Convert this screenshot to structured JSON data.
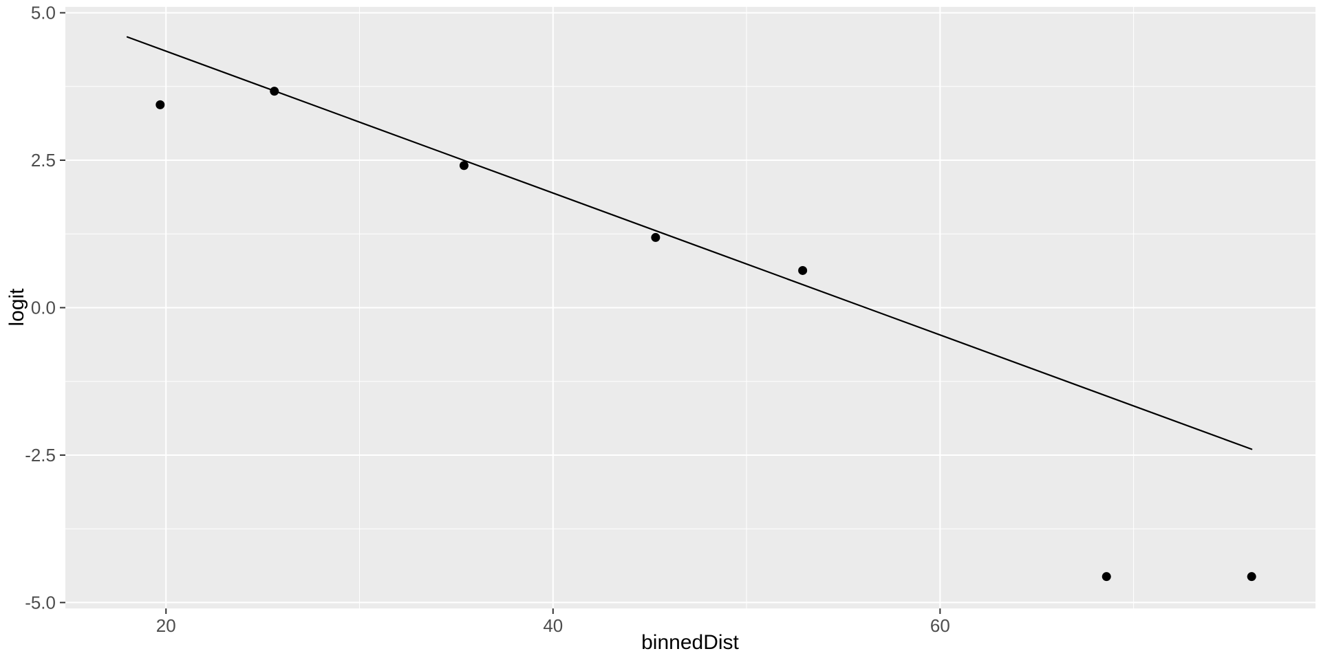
{
  "chart_data": {
    "type": "scatter",
    "title": "",
    "xlabel": "binnedDist",
    "ylabel": "logit",
    "xlim": [
      14.8,
      79.4
    ],
    "ylim": [
      -5.1,
      5.1
    ],
    "x_ticks": [
      20,
      40,
      60
    ],
    "x_tick_labels": [
      "20",
      "40",
      "60"
    ],
    "x_minor_ticks": [
      30,
      50,
      70
    ],
    "y_ticks": [
      5.0,
      2.5,
      0.0,
      -2.5,
      -5.0
    ],
    "y_tick_labels": [
      "5.0",
      "2.5",
      "0.0",
      "-2.5",
      "-5.0"
    ],
    "y_minor_ticks": [
      3.75,
      1.25,
      -1.25,
      -3.75
    ],
    "grid": true,
    "legend": "none",
    "points": [
      {
        "x": 19.7,
        "y": 3.44
      },
      {
        "x": 25.6,
        "y": 3.67
      },
      {
        "x": 35.4,
        "y": 2.41
      },
      {
        "x": 45.3,
        "y": 1.19
      },
      {
        "x": 52.9,
        "y": 0.63
      },
      {
        "x": 68.6,
        "y": -4.56
      },
      {
        "x": 76.1,
        "y": -4.56
      }
    ],
    "regression_line": {
      "x1": 18.0,
      "y1": 4.59,
      "x2": 76.1,
      "y2": -2.4
    },
    "style": {
      "panel_bg": "#EBEBEB",
      "grid_major_color": "#FFFFFF",
      "grid_minor_color": "#FFFFFF",
      "point_color": "#000000",
      "line_color": "#000000",
      "tick_mark_color": "#333333",
      "tick_label_color": "#4D4D4D",
      "axis_title_color": "#000000"
    }
  }
}
